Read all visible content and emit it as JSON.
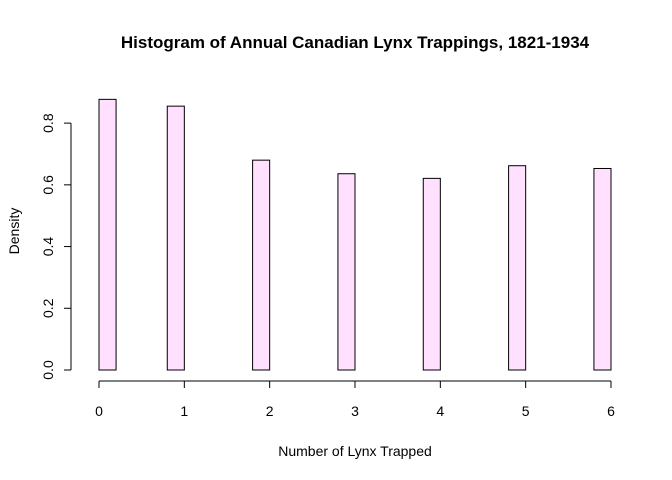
{
  "chart_data": {
    "type": "bar",
    "title": "Histogram of Annual Canadian Lynx Trappings, 1821-1934",
    "xlabel": "Number of Lynx Trapped",
    "ylabel": "Density",
    "x_ticks": [
      "0",
      "1",
      "2",
      "3",
      "4",
      "5",
      "6"
    ],
    "y_ticks": [
      "0.0",
      "0.2",
      "0.4",
      "0.6",
      "0.8"
    ],
    "xlim": [
      0,
      6
    ],
    "ylim": [
      0,
      0.88
    ],
    "grid": false,
    "bars": [
      {
        "x_start": 0.0,
        "x_end": 0.2,
        "value": 0.877
      },
      {
        "x_start": 0.8,
        "x_end": 1.0,
        "value": 0.855
      },
      {
        "x_start": 1.8,
        "x_end": 2.0,
        "value": 0.68
      },
      {
        "x_start": 2.8,
        "x_end": 3.0,
        "value": 0.636
      },
      {
        "x_start": 3.8,
        "x_end": 4.0,
        "value": 0.621
      },
      {
        "x_start": 4.8,
        "x_end": 5.0,
        "value": 0.662
      },
      {
        "x_start": 5.8,
        "x_end": 6.0,
        "value": 0.653
      }
    ],
    "bar_fill": "#ffe0ff",
    "bar_stroke": "#000000"
  }
}
